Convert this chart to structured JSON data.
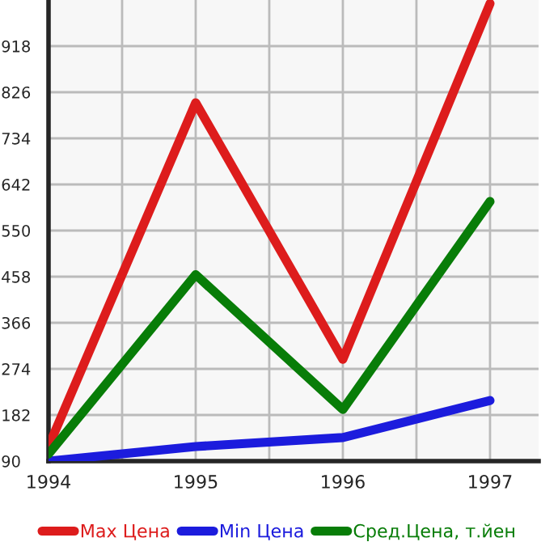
{
  "chart_data": {
    "type": "line",
    "x": [
      1994,
      1995,
      1996,
      1997
    ],
    "series": [
      {
        "name": "Max Цена",
        "color": "#dd1c1c",
        "values": [
          119,
          805,
          293,
          1003
        ]
      },
      {
        "name": "Min Цена",
        "color": "#1c1cdd",
        "values": [
          90,
          119,
          137,
          211
        ]
      },
      {
        "name": "Сред.Цена, т.йен",
        "color": "#087d08",
        "values": [
          104,
          462,
          193,
          608
        ]
      }
    ],
    "xlim": [
      1994,
      1997.33
    ],
    "ylim": [
      90,
      1010
    ],
    "xticks": [
      1994,
      {
        "value": 1994.5,
        "label": null
      },
      1995,
      {
        "value": 1995.5,
        "label": null
      },
      1996,
      {
        "value": 1996.5,
        "label": null
      },
      1997
    ],
    "yticks": [
      90,
      182,
      274,
      366,
      458,
      550,
      642,
      734,
      826,
      918
    ],
    "grid": true,
    "legend": "bottom",
    "marker": "none",
    "line_style": "solid"
  }
}
